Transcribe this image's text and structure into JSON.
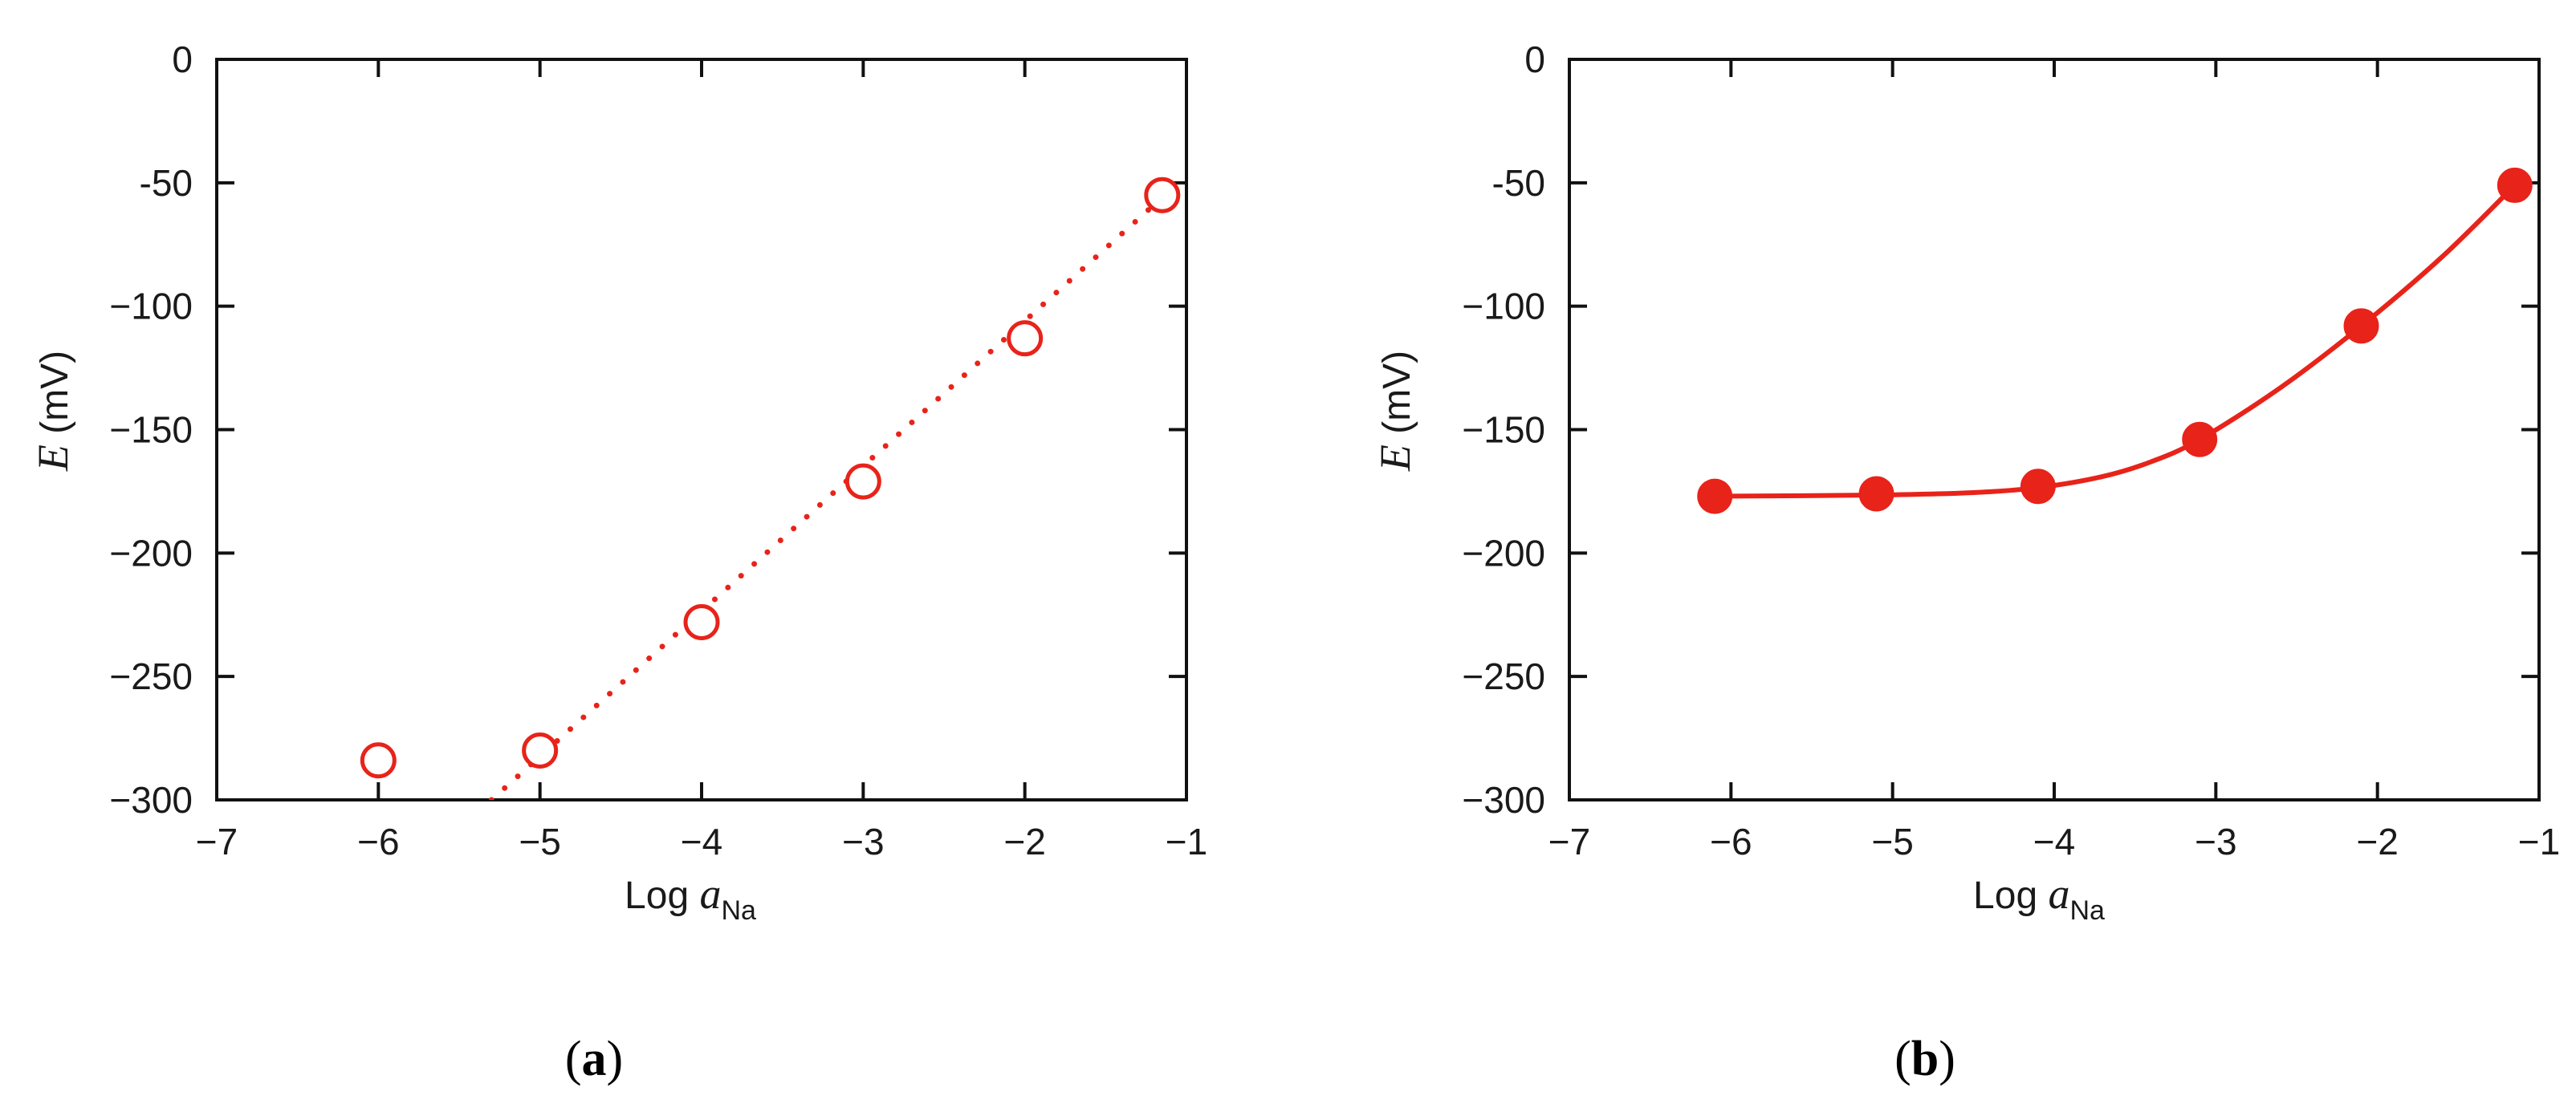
{
  "panels": [
    {
      "label_open": "(",
      "label_letter": "a",
      "label_close": ")",
      "xlabel_main": "Log ",
      "xlabel_ital": "a",
      "xlabel_sub": "Na",
      "ylabel_ital": "E",
      "ylabel_rest": " (mV)"
    },
    {
      "label_open": "(",
      "label_letter": "b",
      "label_close": ")",
      "xlabel_main": "Log ",
      "xlabel_ital": "a",
      "xlabel_sub": "Na",
      "ylabel_ital": "E",
      "ylabel_rest": " (mV)"
    }
  ],
  "chart_data": [
    {
      "type": "scatter",
      "xlabel": "Log aNa",
      "ylabel": "E (mV)",
      "xlim": [
        -7,
        -1
      ],
      "ylim": [
        -300,
        0
      ],
      "xticks": [
        "−7",
        "−6",
        "−5",
        "−4",
        "−3",
        "−2",
        "−1"
      ],
      "yticks": [
        "0",
        "-50",
        "−100",
        "−150",
        "−200",
        "−250",
        "−300"
      ],
      "marker": "open-circle",
      "color": "#e8231a",
      "series": [
        {
          "x": [
            -6.0,
            -5.0,
            -4.0,
            -3.0,
            -2.0,
            -1.15
          ],
          "y": [
            -284,
            -280,
            -228,
            -171,
            -113,
            -55
          ]
        }
      ],
      "fit_line": {
        "style": "dotted",
        "x": [
          -5.3,
          -1.1
        ],
        "y": [
          -300,
          -53
        ]
      }
    },
    {
      "type": "scatter",
      "xlabel": "Log aNa",
      "ylabel": "E (mV)",
      "xlim": [
        -7,
        -1
      ],
      "ylim": [
        -300,
        0
      ],
      "xticks": [
        "−7",
        "−6",
        "−5",
        "−4",
        "−3",
        "−2",
        "−1"
      ],
      "yticks": [
        "0",
        "-50",
        "−100",
        "−150",
        "−200",
        "−250",
        "−300"
      ],
      "marker": "filled-circle",
      "color": "#e8231a",
      "series": [
        {
          "x": [
            -6.1,
            -5.1,
            -4.1,
            -3.1,
            -2.1,
            -1.15
          ],
          "y": [
            -177,
            -176,
            -173,
            -154,
            -108,
            -51
          ]
        }
      ],
      "fit_line": {
        "style": "solid",
        "x": [
          -6.1,
          -5.1,
          -4.5,
          -4.1,
          -3.7,
          -3.4,
          -3.1,
          -2.6,
          -2.1,
          -1.6,
          -1.15
        ],
        "y": [
          -177,
          -176.5,
          -175.5,
          -173.5,
          -169,
          -163,
          -154,
          -133,
          -108,
          -80,
          -51
        ]
      }
    }
  ]
}
